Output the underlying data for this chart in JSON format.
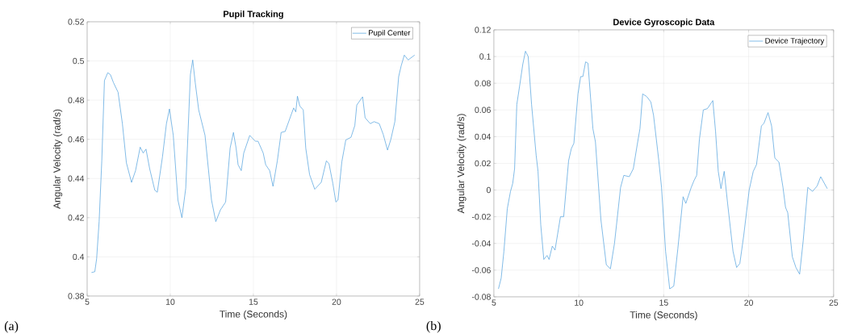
{
  "chart_data": [
    {
      "type": "line",
      "title": "Pupil Tracking",
      "xlabel": "Time (Seconds)",
      "ylabel": "Angular Velocity (rad/s)",
      "annotations": [
        "(a)"
      ],
      "xlim": [
        5,
        25
      ],
      "ylim": [
        0.38,
        0.52
      ],
      "xticks": [
        5,
        10,
        15,
        20,
        25
      ],
      "yticks": [
        0.38,
        0.4,
        0.42,
        0.44,
        0.46,
        0.48,
        0.5,
        0.52
      ],
      "grid": true,
      "legend": "top right",
      "x": [
        5.26,
        5.46,
        5.57,
        5.72,
        5.88,
        6.04,
        6.24,
        6.4,
        6.58,
        6.86,
        7.12,
        7.36,
        7.67,
        7.91,
        8.19,
        8.37,
        8.54,
        8.76,
        9.07,
        9.22,
        9.53,
        9.77,
        9.95,
        10.18,
        10.46,
        10.7,
        10.93,
        11.21,
        11.35,
        11.5,
        11.71,
        12.09,
        12.48,
        12.74,
        13.02,
        13.33,
        13.6,
        13.8,
        13.96,
        14.08,
        14.27,
        14.42,
        14.78,
        15.12,
        15.28,
        15.59,
        15.74,
        15.98,
        16.18,
        16.44,
        16.67,
        16.91,
        17.42,
        17.55,
        17.65,
        17.79,
        18.0,
        18.15,
        18.38,
        18.69,
        19.08,
        19.39,
        19.55,
        19.78,
        19.96,
        20.09,
        20.32,
        20.56,
        20.87,
        21.1,
        21.22,
        21.57,
        21.72,
        22.03,
        22.26,
        22.57,
        22.81,
        23.07,
        23.27,
        23.51,
        23.74,
        23.89,
        24.08,
        24.31,
        24.7
      ],
      "series": [
        {
          "name": "Pupil Center",
          "color": "#4d9fdc",
          "values": [
            0.392,
            0.3924,
            0.399,
            0.418,
            0.449,
            0.49,
            0.494,
            0.493,
            0.489,
            0.484,
            0.468,
            0.448,
            0.438,
            0.444,
            0.456,
            0.453,
            0.455,
            0.445,
            0.434,
            0.433,
            0.451,
            0.468,
            0.4755,
            0.462,
            0.429,
            0.42,
            0.435,
            0.493,
            0.5005,
            0.489,
            0.475,
            0.462,
            0.429,
            0.418,
            0.424,
            0.428,
            0.4555,
            0.4635,
            0.4555,
            0.447,
            0.444,
            0.453,
            0.462,
            0.459,
            0.459,
            0.453,
            0.447,
            0.444,
            0.436,
            0.449,
            0.4635,
            0.464,
            0.476,
            0.474,
            0.482,
            0.477,
            0.475,
            0.4555,
            0.442,
            0.4345,
            0.438,
            0.449,
            0.4475,
            0.4375,
            0.428,
            0.429,
            0.4485,
            0.4597,
            0.461,
            0.467,
            0.4775,
            0.4817,
            0.471,
            0.468,
            0.469,
            0.468,
            0.4625,
            0.4545,
            0.46,
            0.469,
            0.492,
            0.4975,
            0.503,
            0.5005,
            0.503
          ]
        }
      ]
    },
    {
      "type": "line",
      "title": "Device Gyroscopic Data",
      "xlabel": "Time (Seconds)",
      "ylabel": "Angular Velocity (rad/s)",
      "annotations": [
        "(b)"
      ],
      "xlim": [
        5,
        25
      ],
      "ylim": [
        -0.08,
        0.12
      ],
      "xticks": [
        5,
        10,
        15,
        20,
        25
      ],
      "yticks": [
        -0.08,
        -0.06,
        -0.04,
        -0.02,
        0,
        0.02,
        0.04,
        0.06,
        0.08,
        0.1,
        0.12
      ],
      "grid": true,
      "legend": "top right",
      "x": [
        5.27,
        5.43,
        5.59,
        5.79,
        5.98,
        6.11,
        6.22,
        6.35,
        6.54,
        6.7,
        6.86,
        7.02,
        7.22,
        7.49,
        7.6,
        7.76,
        7.94,
        8.13,
        8.25,
        8.44,
        8.6,
        8.92,
        9.11,
        9.4,
        9.56,
        9.71,
        9.95,
        10.11,
        10.24,
        10.4,
        10.54,
        10.83,
        10.98,
        11.3,
        11.62,
        11.86,
        12.1,
        12.46,
        12.65,
        12.97,
        13.21,
        13.44,
        13.6,
        13.76,
        14.0,
        14.24,
        14.4,
        14.71,
        14.87,
        15.11,
        15.35,
        15.59,
        15.83,
        16.14,
        16.3,
        16.62,
        16.78,
        16.94,
        17.1,
        17.33,
        17.57,
        17.89,
        18.05,
        18.21,
        18.37,
        18.56,
        18.76,
        19.08,
        19.29,
        19.48,
        19.71,
        20.03,
        20.27,
        20.46,
        20.75,
        20.9,
        21.14,
        21.35,
        21.54,
        21.78,
        22.02,
        22.17,
        22.3,
        22.57,
        22.78,
        23.0,
        23.21,
        23.48,
        23.76,
        24.03,
        24.24,
        24.63
      ],
      "series": [
        {
          "name": "Device Trajectory",
          "color": "#4d9fdc",
          "values": [
            -0.074,
            -0.066,
            -0.046,
            -0.014,
            -0.001,
            0.005,
            0.016,
            0.064,
            0.08,
            0.094,
            0.104,
            0.1,
            0.064,
            0.026,
            0.014,
            -0.026,
            -0.052,
            -0.049,
            -0.052,
            -0.042,
            -0.045,
            -0.02,
            -0.02,
            0.022,
            0.031,
            0.035,
            0.072,
            0.085,
            0.085,
            0.096,
            0.095,
            0.046,
            0.036,
            -0.022,
            -0.056,
            -0.059,
            -0.04,
            0.002,
            0.011,
            0.01,
            0.016,
            0.034,
            0.046,
            0.072,
            0.07,
            0.066,
            0.056,
            0.022,
            0.002,
            -0.046,
            -0.074,
            -0.072,
            -0.044,
            -0.005,
            -0.01,
            0.002,
            0.007,
            0.011,
            0.038,
            0.06,
            0.061,
            0.067,
            0.044,
            0.014,
            0.001,
            0.014,
            -0.01,
            -0.046,
            -0.058,
            -0.055,
            -0.034,
            0.0,
            0.014,
            0.019,
            0.048,
            0.05,
            0.058,
            0.048,
            0.024,
            0.021,
            0.002,
            -0.013,
            -0.017,
            -0.05,
            -0.058,
            -0.063,
            -0.038,
            0.002,
            -0.001,
            0.003,
            0.01,
            0.001
          ]
        }
      ]
    }
  ]
}
